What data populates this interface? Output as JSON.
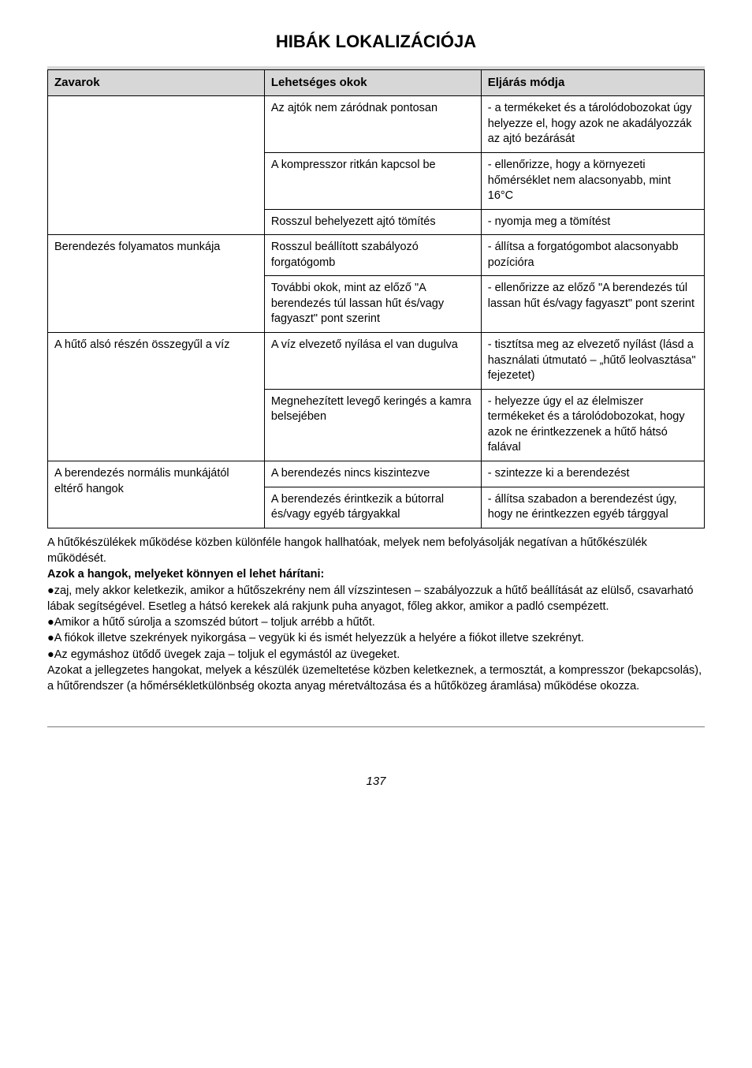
{
  "title": "HIBÁK LOKALIZÁCIÓJA",
  "table": {
    "headers": [
      "Zavarok",
      "Lehetséges okok",
      "Eljárás módja"
    ],
    "col_widths_pct": [
      33,
      33,
      34
    ],
    "header_bg": "#d7d7d7",
    "border_color": "#000000",
    "font_size_pt": 11,
    "rows": [
      {
        "c1": "",
        "c2": "Az ajtók nem záródnak pontosan",
        "c3": "- a termékeket és a tároló­dobozokat úgy helyezze el, hogy azok ne akadályozzák az ajtó bezárását"
      },
      {
        "c1": "",
        "c2": "A kompresszor ritkán kapc­sol be",
        "c3": "- ellenőrizze, hogy a kör­nyezeti hőmérséklet nem alacsonyabb, mint 16°C"
      },
      {
        "c1": "",
        "c2": "Rosszul behelyezett ajtó tömítés",
        "c3": "- nyomja meg a tömítést"
      },
      {
        "c1": "Berendezés folyamatos munkája",
        "c2": "Rosszul beállított szabályozó forgatógomb",
        "c3": "- állítsa a forgatógombot alacsonyabb pozícióra"
      },
      {
        "c1": "",
        "c2": "További okok, mint az előző \"A berendezés túl lassan hűt és/vagy fagyaszt\" pont szerint",
        "c3": "- ellenőrizze az előző  \"A be­rendezés túl lassan hűt és/vagy fagyaszt\" pont szerint"
      },
      {
        "c1": "A hűtő alsó részén összegy­űl a víz",
        "c2": "A víz elvezető nyílása el van dugulva",
        "c3": "- tisztítsa meg az elvezető nyílást (lásd a használati út­mutató – „hűtő leolvasztása\" fejezetet)"
      },
      {
        "c1": "",
        "c2": "Megnehezített levegő kerin­gés a kamra belsejében",
        "c3": "- helyezze úgy el az élel­miszer termékeket és a tárolódobozokat, hogy azok ne érintkezzenek a hűtő hátsó falával"
      },
      {
        "c1": "A berendezés normális mun­kájától eltérő hangok",
        "c2": "A berendezés nincs kiszin­tezve",
        "c3": "- szintezze ki a berendezést"
      },
      {
        "c1": "",
        "c2": "A berendezés érintkezik a bútorral és/vagy egyéb tárgyakkal",
        "c3": "- állítsa szabadon a beren­dezést úgy, hogy ne érint­kezzen egyéb tárggyal"
      }
    ],
    "rowspans_c1": [
      3,
      2,
      2,
      2
    ]
  },
  "paragraphs": {
    "p1": "A hűtőkészülékek működése közben különféle hangok hallhatóak, melyek nem befolyásolják negatívan a hűtőkészülék működését.",
    "p2": "Azok a hangok, melyeket könnyen el lehet hárítani:",
    "b1": "zaj, mely akkor keletkezik, amikor a hűtőszekrény nem áll vízszintesen – szabályozzuk a hűtő beállítását az elülső, csavarható lábak segítségével. Esetleg a hátsó kerekek alá rakjunk puha anyagot, főleg akkor, amikor a padló csempézett.",
    "b2": "Amikor a hűtő súrolja a szomszéd bútort – toljuk arrébb a hűtőt.",
    "b3": "A fiókok illetve szekrények nyikorgása – vegyük ki és ismét helyezzük a helyére a fiókot illetve szekrényt.",
    "b4": "Az egymáshoz ütődő üvegek zaja – toljuk el egymástól az üvegeket.",
    "p3": "Azokat a jellegzetes hangokat, melyek a készülék üzemeltetése közben keletkeznek, a termosztát, a kompresszor (bekapcsolás), a hűtőrendszer (a hőmérsékletkülönbség okozta anyag méretváltozása és a hűtőközeg áramlása) működése okozza."
  },
  "page_number": "137",
  "bullet_glyph": "●"
}
